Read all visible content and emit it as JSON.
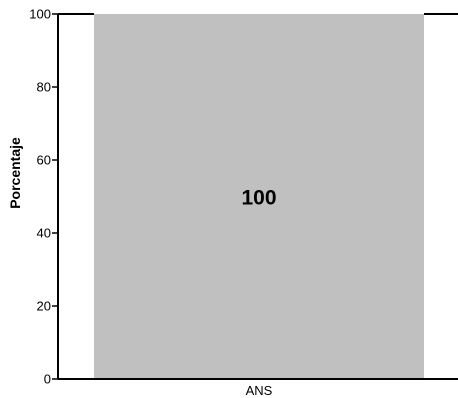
{
  "chart_data": {
    "type": "bar",
    "title": "",
    "xlabel": "",
    "ylabel": "Porcentaje",
    "ylim": [
      0,
      100
    ],
    "yticks": [
      0,
      20,
      40,
      60,
      80,
      100
    ],
    "ytick_labels": [
      "0",
      "20",
      "40",
      "60",
      "80",
      "100"
    ],
    "categories": [
      "ANS"
    ],
    "values": [
      100
    ],
    "data_labels": [
      "100"
    ],
    "grid": false,
    "legend": "none",
    "colors": {
      "bar": "#c0c0c0",
      "axis": "#000000",
      "text": "#000000",
      "background": "#ffffff"
    }
  }
}
